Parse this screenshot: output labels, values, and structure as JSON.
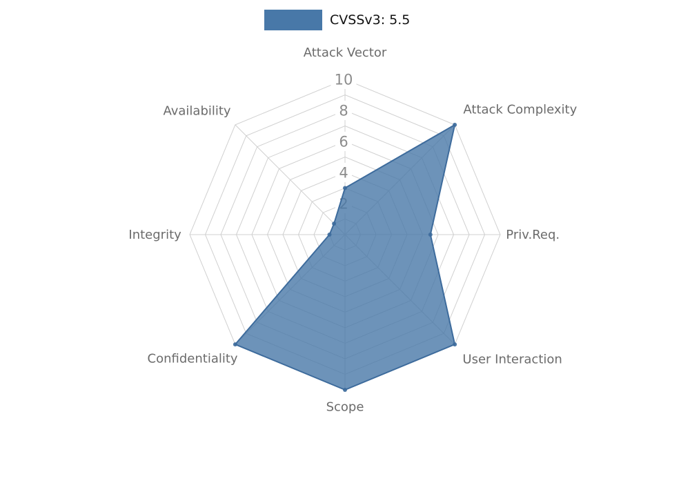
{
  "legend": {
    "label": "CVSSv3: 5.5",
    "position": "top"
  },
  "colors": {
    "fill": "#4878a8",
    "stroke": "#3d6b9c",
    "grid": "#d0d0d0",
    "axis_label": "#6b6b6b",
    "tick_label": "#8c8c8c",
    "tick_bg": "#ffffff",
    "legend_text": "#111111",
    "background": "#ffffff"
  },
  "chart_data": {
    "type": "radar",
    "title": "CVSSv3: 5.5",
    "categories": [
      "Attack Vector",
      "Attack Complexity",
      "Priv.Req.",
      "User Interaction",
      "Scope",
      "Confidentiality",
      "Integrity",
      "Availability"
    ],
    "series": [
      {
        "name": "CVSSv3: 5.5",
        "values": [
          3,
          10,
          5.5,
          10,
          10,
          10,
          1,
          1
        ]
      }
    ],
    "rticks": [
      2,
      4,
      6,
      8,
      10
    ],
    "rlim": [
      0,
      10
    ],
    "rings": 10,
    "grid": true,
    "legend_position": "top"
  }
}
